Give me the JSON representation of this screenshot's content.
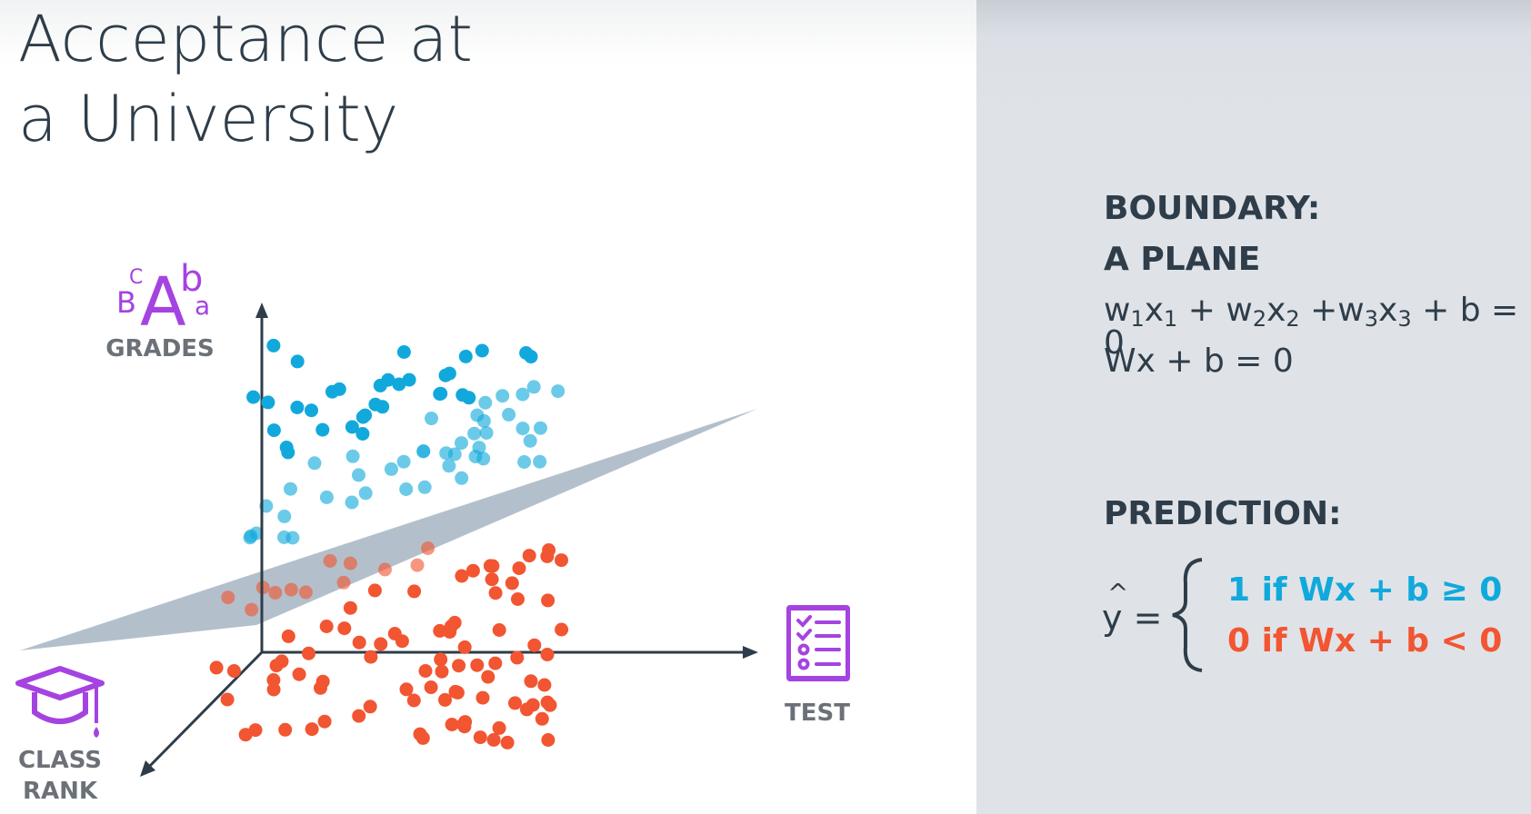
{
  "title": {
    "line1": "Acceptance at",
    "line2": "a University"
  },
  "axes": {
    "vertical": {
      "label": "GRADES",
      "icon": "grades-letters-icon",
      "icon_letters": [
        "B",
        "C",
        "A",
        "b",
        "a"
      ]
    },
    "horizontal": {
      "label": "TEST",
      "icon": "test-clipboard-icon"
    },
    "depth": {
      "label_line1": "CLASS",
      "label_line2": "RANK",
      "icon": "graduation-cap-icon"
    }
  },
  "colors": {
    "accepted": "#11a9dc",
    "rejected": "#f25531",
    "plane": "#b3c0cc",
    "icon": "#a543e1",
    "text": "#2e3d49"
  },
  "boundary": {
    "heading_line1": "BOUNDARY:",
    "heading_line2": "A PLANE",
    "equation_parts": [
      "w",
      "1",
      "x",
      "1",
      " + w",
      "2",
      "x",
      "2",
      " +w",
      "3",
      "x",
      "3",
      " + b = 0"
    ],
    "vector_equation": "Wx + b = 0"
  },
  "prediction": {
    "heading": "PREDICTION:",
    "lhs": "y =",
    "lhs_hat": "^",
    "case_positive": "1 if Wx + b ≥ 0",
    "case_negative": "0 if Wx + b < 0"
  }
}
